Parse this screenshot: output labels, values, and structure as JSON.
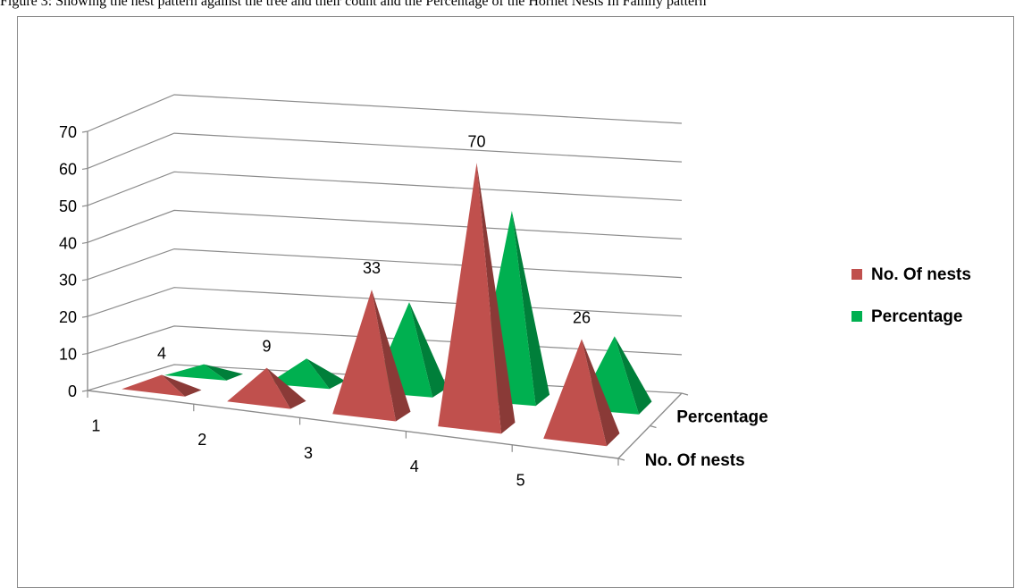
{
  "caption": "Figure 3: Showing the nest pattern against the tree and their count and the Percentage of the Hornet Nests In Family pattern",
  "chart_data": {
    "type": "bar",
    "shape": "3d-pyramid",
    "categories": [
      "1",
      "2",
      "3",
      "4",
      "5"
    ],
    "series": [
      {
        "name": "No. Of nests",
        "values": [
          4,
          9,
          33,
          70,
          26
        ],
        "color": "#c0504d",
        "show_labels": true
      },
      {
        "name": "Percentage",
        "values": [
          2.8,
          6.3,
          23.1,
          49,
          18.2
        ],
        "color": "#00b050",
        "show_labels": false
      }
    ],
    "ylim": [
      0,
      70
    ],
    "yticks": [
      0,
      10,
      20,
      30,
      40,
      50,
      60,
      70
    ],
    "depth_labels": [
      "No. Of nests",
      "Percentage"
    ],
    "legend_position": "right",
    "grid": true
  }
}
